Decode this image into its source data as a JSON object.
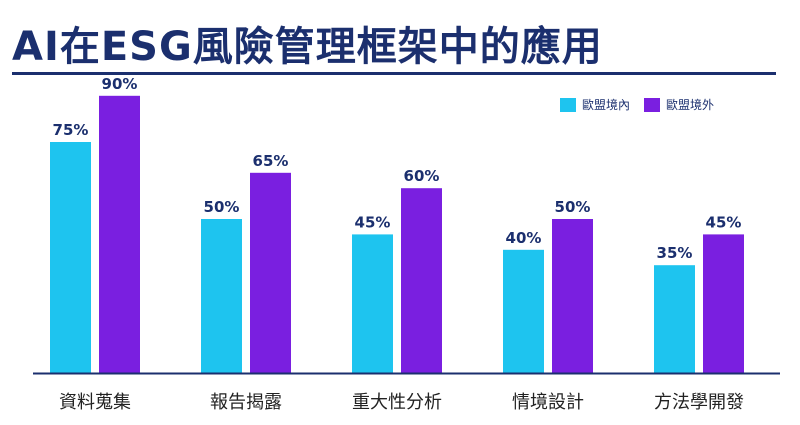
{
  "title": "AI在ESG風險管理框架中的應用",
  "colors": {
    "title": "#1b2f6e",
    "series1": "#1ec4ef",
    "series2": "#7a1fe0",
    "axis": "#1b2f6e"
  },
  "legend": {
    "placement": "top-right"
  },
  "chart_data": {
    "type": "bar",
    "categories": [
      "資料蒐集",
      "報告揭露",
      "重大性分析",
      "情境設計",
      "方法學開發"
    ],
    "series": [
      {
        "name": "歐盟境內",
        "values": [
          75,
          50,
          45,
          40,
          35
        ],
        "labels": [
          "75%",
          "50%",
          "45%",
          "40%",
          "35%"
        ]
      },
      {
        "name": "歐盟境外",
        "values": [
          90,
          65,
          60,
          50,
          45
        ],
        "labels": [
          "90%",
          "65%",
          "60%",
          "50%",
          "45%"
        ]
      }
    ],
    "ylim": [
      0,
      100
    ],
    "grid": false
  }
}
